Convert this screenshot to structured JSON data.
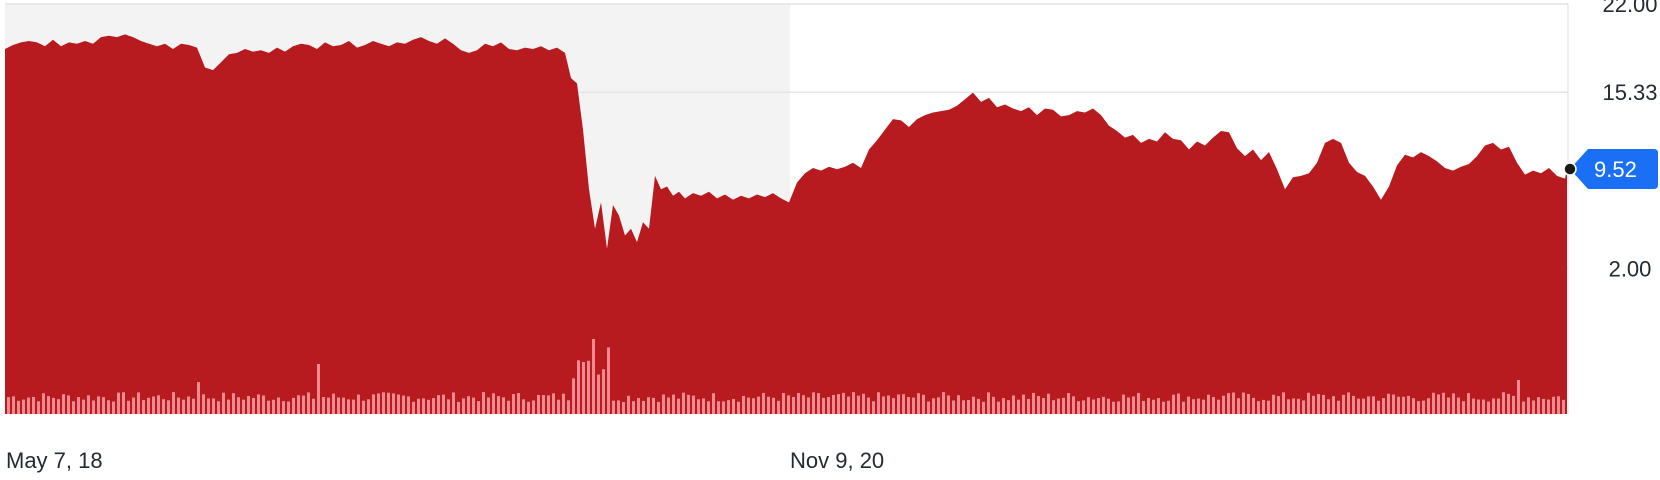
{
  "chart_data": {
    "type": "area",
    "x_labels": [
      "May 7, 18",
      "Nov 9, 20"
    ],
    "y_ticks": [
      "22.00",
      "15.33",
      "2.00"
    ],
    "current_value": "9.52",
    "ylim": [
      -9.0,
      22.0
    ],
    "grid": true,
    "colors": {
      "area": "#b71a1f",
      "volume": "#f08a90",
      "shade": "#f3f3f3",
      "badge": "#1b6ff5",
      "grid": "#e4e4e4"
    },
    "price_points": [
      [
        0,
        18.6
      ],
      [
        8,
        18.9
      ],
      [
        16,
        19.1
      ],
      [
        24,
        19.2
      ],
      [
        32,
        19.1
      ],
      [
        40,
        18.8
      ],
      [
        48,
        19.3
      ],
      [
        56,
        18.8
      ],
      [
        64,
        19.1
      ],
      [
        72,
        19.0
      ],
      [
        80,
        19.2
      ],
      [
        88,
        19.0
      ],
      [
        96,
        19.5
      ],
      [
        104,
        19.6
      ],
      [
        112,
        19.5
      ],
      [
        120,
        19.7
      ],
      [
        128,
        19.5
      ],
      [
        136,
        19.2
      ],
      [
        144,
        19.0
      ],
      [
        152,
        18.8
      ],
      [
        160,
        19.0
      ],
      [
        168,
        18.6
      ],
      [
        176,
        19.0
      ],
      [
        184,
        18.9
      ],
      [
        192,
        18.7
      ],
      [
        200,
        17.2
      ],
      [
        208,
        17.0
      ],
      [
        216,
        17.6
      ],
      [
        224,
        18.2
      ],
      [
        232,
        18.3
      ],
      [
        240,
        18.6
      ],
      [
        248,
        18.4
      ],
      [
        256,
        18.5
      ],
      [
        264,
        18.3
      ],
      [
        272,
        18.7
      ],
      [
        280,
        18.4
      ],
      [
        288,
        18.8
      ],
      [
        296,
        19.0
      ],
      [
        304,
        18.9
      ],
      [
        312,
        18.6
      ],
      [
        320,
        19.1
      ],
      [
        328,
        18.8
      ],
      [
        336,
        18.9
      ],
      [
        344,
        19.2
      ],
      [
        352,
        18.7
      ],
      [
        360,
        18.9
      ],
      [
        368,
        19.2
      ],
      [
        376,
        19.0
      ],
      [
        384,
        18.8
      ],
      [
        392,
        19.1
      ],
      [
        400,
        19.0
      ],
      [
        408,
        19.3
      ],
      [
        416,
        19.5
      ],
      [
        424,
        19.2
      ],
      [
        432,
        19.0
      ],
      [
        440,
        19.4
      ],
      [
        448,
        19.0
      ],
      [
        456,
        18.5
      ],
      [
        464,
        18.3
      ],
      [
        472,
        18.5
      ],
      [
        480,
        19.0
      ],
      [
        488,
        18.8
      ],
      [
        496,
        19.1
      ],
      [
        504,
        18.6
      ],
      [
        512,
        18.5
      ],
      [
        520,
        18.7
      ],
      [
        528,
        18.6
      ],
      [
        536,
        18.8
      ],
      [
        544,
        18.5
      ],
      [
        552,
        18.7
      ],
      [
        560,
        18.3
      ],
      [
        566,
        16.4
      ],
      [
        572,
        16.0
      ],
      [
        578,
        12.5
      ],
      [
        584,
        8.0
      ],
      [
        590,
        5.0
      ],
      [
        596,
        7.0
      ],
      [
        602,
        3.5
      ],
      [
        608,
        6.8
      ],
      [
        614,
        6.0
      ],
      [
        620,
        4.5
      ],
      [
        626,
        5.0
      ],
      [
        632,
        4.0
      ],
      [
        638,
        5.5
      ],
      [
        644,
        5.0
      ],
      [
        650,
        9.0
      ],
      [
        656,
        8.0
      ],
      [
        662,
        8.2
      ],
      [
        668,
        7.5
      ],
      [
        674,
        7.8
      ],
      [
        680,
        7.3
      ],
      [
        688,
        7.7
      ],
      [
        696,
        7.5
      ],
      [
        704,
        7.8
      ],
      [
        712,
        7.3
      ],
      [
        720,
        7.6
      ],
      [
        728,
        7.2
      ],
      [
        736,
        7.5
      ],
      [
        744,
        7.3
      ],
      [
        752,
        7.6
      ],
      [
        760,
        7.4
      ],
      [
        768,
        7.7
      ],
      [
        776,
        7.3
      ],
      [
        784,
        7.0
      ],
      [
        792,
        8.5
      ],
      [
        800,
        9.2
      ],
      [
        808,
        9.6
      ],
      [
        816,
        9.4
      ],
      [
        824,
        9.7
      ],
      [
        832,
        9.5
      ],
      [
        840,
        9.7
      ],
      [
        848,
        10.0
      ],
      [
        856,
        9.6
      ],
      [
        864,
        11.0
      ],
      [
        872,
        11.7
      ],
      [
        880,
        12.5
      ],
      [
        888,
        13.3
      ],
      [
        896,
        13.2
      ],
      [
        904,
        12.7
      ],
      [
        912,
        13.3
      ],
      [
        920,
        13.6
      ],
      [
        928,
        13.8
      ],
      [
        936,
        13.9
      ],
      [
        944,
        14.0
      ],
      [
        952,
        14.3
      ],
      [
        960,
        14.8
      ],
      [
        968,
        15.3
      ],
      [
        976,
        14.6
      ],
      [
        984,
        14.9
      ],
      [
        992,
        14.2
      ],
      [
        1000,
        14.4
      ],
      [
        1008,
        14.1
      ],
      [
        1016,
        13.9
      ],
      [
        1024,
        14.2
      ],
      [
        1032,
        13.6
      ],
      [
        1040,
        14.1
      ],
      [
        1048,
        14.0
      ],
      [
        1056,
        13.5
      ],
      [
        1064,
        13.6
      ],
      [
        1072,
        13.9
      ],
      [
        1080,
        13.8
      ],
      [
        1088,
        14.1
      ],
      [
        1096,
        13.6
      ],
      [
        1104,
        12.8
      ],
      [
        1112,
        12.4
      ],
      [
        1120,
        11.9
      ],
      [
        1128,
        12.1
      ],
      [
        1136,
        11.5
      ],
      [
        1144,
        11.8
      ],
      [
        1152,
        11.6
      ],
      [
        1160,
        12.3
      ],
      [
        1168,
        11.8
      ],
      [
        1176,
        11.7
      ],
      [
        1184,
        11.0
      ],
      [
        1192,
        11.6
      ],
      [
        1200,
        11.3
      ],
      [
        1208,
        11.9
      ],
      [
        1216,
        12.4
      ],
      [
        1224,
        12.3
      ],
      [
        1232,
        11.1
      ],
      [
        1240,
        10.5
      ],
      [
        1248,
        11.0
      ],
      [
        1256,
        10.2
      ],
      [
        1264,
        10.8
      ],
      [
        1272,
        9.5
      ],
      [
        1280,
        8.0
      ],
      [
        1288,
        8.9
      ],
      [
        1296,
        9.0
      ],
      [
        1304,
        9.2
      ],
      [
        1312,
        10.0
      ],
      [
        1320,
        11.5
      ],
      [
        1328,
        11.8
      ],
      [
        1336,
        11.5
      ],
      [
        1344,
        10.0
      ],
      [
        1352,
        9.3
      ],
      [
        1360,
        9.0
      ],
      [
        1368,
        8.2
      ],
      [
        1376,
        7.2
      ],
      [
        1384,
        8.2
      ],
      [
        1392,
        9.8
      ],
      [
        1400,
        10.6
      ],
      [
        1408,
        10.4
      ],
      [
        1416,
        10.8
      ],
      [
        1424,
        10.5
      ],
      [
        1432,
        10.1
      ],
      [
        1440,
        9.6
      ],
      [
        1448,
        9.4
      ],
      [
        1456,
        9.7
      ],
      [
        1464,
        9.9
      ],
      [
        1472,
        10.5
      ],
      [
        1480,
        11.3
      ],
      [
        1488,
        11.5
      ],
      [
        1496,
        11.0
      ],
      [
        1504,
        11.2
      ],
      [
        1512,
        10.0
      ],
      [
        1520,
        9.1
      ],
      [
        1528,
        9.4
      ],
      [
        1536,
        9.2
      ],
      [
        1544,
        9.6
      ],
      [
        1552,
        9.0
      ],
      [
        1560,
        8.8
      ],
      [
        1568,
        9.5
      ],
      [
        1576,
        9.5
      ]
    ]
  }
}
